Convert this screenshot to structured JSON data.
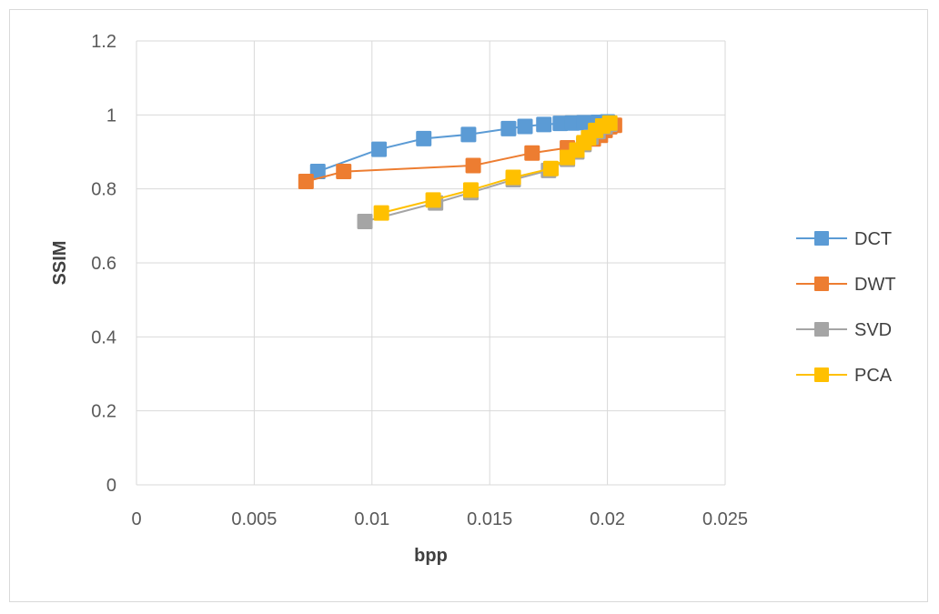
{
  "chart_data": {
    "type": "scatter",
    "title": "",
    "xlabel": "bpp",
    "ylabel": "SSIM",
    "xlim": [
      0,
      0.025
    ],
    "ylim": [
      0,
      1.2
    ],
    "xticks": [
      0,
      0.005,
      0.01,
      0.015,
      0.02,
      0.025
    ],
    "xtick_labels": [
      "0",
      "0.005",
      "0.01",
      "0.015",
      "0.02",
      "0.025"
    ],
    "yticks": [
      0,
      0.2,
      0.4,
      0.6,
      0.8,
      1,
      1.2
    ],
    "ytick_labels": [
      "0",
      "0.2",
      "0.4",
      "0.6",
      "0.8",
      "1",
      "1.2"
    ],
    "grid": true,
    "legend_position": "right",
    "series": [
      {
        "name": "DCT",
        "color": "#5b9bd5",
        "marker": "square",
        "x": [
          0.0077,
          0.0103,
          0.0122,
          0.0141,
          0.0158,
          0.0165,
          0.0173,
          0.018,
          0.0185,
          0.019,
          0.0196,
          0.02
        ],
        "y": [
          0.847,
          0.907,
          0.936,
          0.947,
          0.963,
          0.969,
          0.974,
          0.977,
          0.978,
          0.979,
          0.98,
          0.981
        ]
      },
      {
        "name": "DWT",
        "color": "#ed7d31",
        "marker": "square",
        "x": [
          0.0072,
          0.0088,
          0.0143,
          0.0168,
          0.0183,
          0.019,
          0.0194,
          0.0197,
          0.0199,
          0.0201,
          0.0203
        ],
        "y": [
          0.82,
          0.847,
          0.863,
          0.897,
          0.911,
          0.922,
          0.935,
          0.945,
          0.958,
          0.968,
          0.972
        ]
      },
      {
        "name": "SVD",
        "color": "#a5a5a5",
        "marker": "square",
        "x": [
          0.0097,
          0.0127,
          0.0142,
          0.016,
          0.0175,
          0.0183,
          0.0187,
          0.019,
          0.0193,
          0.0196,
          0.0199,
          0.0201
        ],
        "y": [
          0.712,
          0.762,
          0.79,
          0.825,
          0.85,
          0.88,
          0.9,
          0.92,
          0.94,
          0.955,
          0.968,
          0.975
        ]
      },
      {
        "name": "PCA",
        "color": "#ffc000",
        "marker": "square",
        "x": [
          0.0104,
          0.0126,
          0.0142,
          0.016,
          0.0176,
          0.0183,
          0.0187,
          0.019,
          0.0192,
          0.0195,
          0.0198,
          0.0201
        ],
        "y": [
          0.735,
          0.77,
          0.797,
          0.831,
          0.855,
          0.885,
          0.905,
          0.925,
          0.938,
          0.958,
          0.97,
          0.978
        ]
      }
    ]
  }
}
